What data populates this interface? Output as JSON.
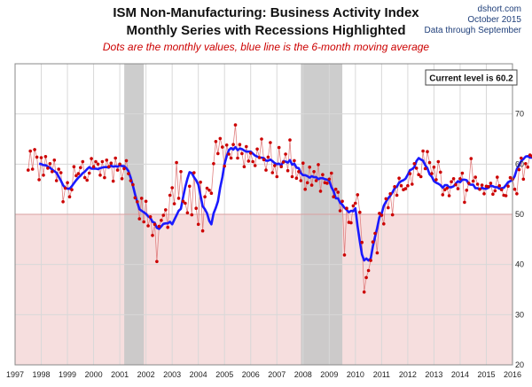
{
  "header": {
    "title_line1": "ISM Non-Manufacturing: Business Activity Index",
    "title_line2": "Monthly Series with Recessions Highlighted",
    "subtitle": "Dots are the monthly values, blue line is the 6-month moving average",
    "source": "dshort.com",
    "date": "October 2015",
    "data_note": "Data through September"
  },
  "annotation": "Current level is 60.2",
  "colors": {
    "dots": "#cc0000",
    "thin_line": "#e08080",
    "moving_average": "#1a1aff",
    "recession": "#c8c8c8",
    "contraction_zone": "#f6dede",
    "grid": "#d8d8d8"
  },
  "chart_data": {
    "type": "line",
    "title": "ISM Non-Manufacturing: Business Activity Index",
    "subtitle": "Monthly Series with Recessions Highlighted",
    "ylim": [
      20,
      80
    ],
    "yticks": [
      20,
      30,
      40,
      50,
      60,
      70
    ],
    "xlim": [
      1997,
      2016
    ],
    "xticks": [
      1997,
      1998,
      1999,
      2000,
      2001,
      2002,
      2003,
      2004,
      2005,
      2006,
      2007,
      2008,
      2009,
      2010,
      2011,
      2012,
      2013,
      2014,
      2015,
      2016
    ],
    "grid": true,
    "y_axis_side": "right",
    "contraction_zone": {
      "from": 20,
      "to": 50
    },
    "recessions": [
      {
        "start": 2001.17,
        "end": 2001.92
      },
      {
        "start": 2007.92,
        "end": 2009.5
      }
    ],
    "series": [
      {
        "name": "Monthly values",
        "style": "dots",
        "start": 1997.5,
        "step_months": 1,
        "values": [
          58.8,
          62.6,
          59.0,
          62.9,
          61.4,
          56.9,
          61.3,
          57.8,
          61.5,
          59.2,
          60.1,
          58.5,
          60.8,
          56.7,
          59.0,
          58.3,
          52.5,
          55.2,
          56.3,
          53.5,
          54.9,
          59.5,
          57.7,
          58.1,
          59.3,
          60.5,
          57.3,
          56.8,
          58.2,
          61.1,
          59.5,
          60.5,
          60.0,
          57.8,
          60.5,
          57.3,
          60.8,
          59.5,
          60.2,
          56.6,
          61.2,
          58.8,
          60.0,
          57.1,
          59.1,
          60.7,
          58.1,
          56.7,
          55.9,
          53.3,
          52.5,
          49.1,
          53.2,
          48.5,
          52.6,
          47.7,
          49.5,
          45.8,
          48.0,
          40.6,
          47.6,
          48.8,
          49.8,
          50.9,
          47.4,
          53.8,
          55.3,
          52.1,
          60.3,
          53.2,
          58.5,
          52.6,
          52.2,
          50.3,
          55.6,
          49.9,
          58.3,
          51.2,
          48.0,
          56.4,
          46.7,
          53.5,
          55.2,
          54.8,
          54.2,
          60.1,
          64.5,
          62.1,
          65.1,
          63.4,
          59.6,
          63.8,
          62.0,
          61.2,
          63.9,
          67.8,
          61.2,
          63.9,
          62.1,
          59.5,
          63.5,
          60.6,
          62.2,
          60.5,
          59.7,
          63.0,
          61.3,
          65.0,
          60.9,
          58.8,
          61.4,
          64.3,
          58.3,
          59.7,
          57.5,
          63.3,
          59.5,
          60.4,
          62.0,
          58.7,
          64.8,
          57.5,
          60.7,
          57.2,
          58.5,
          56.7,
          60.2,
          55.0,
          56.3,
          59.4,
          55.8,
          58.5,
          56.7,
          59.9,
          54.6,
          57.9,
          56.3,
          56.2,
          57.0,
          58.2,
          53.5,
          55.0,
          54.4,
          50.7,
          52.6,
          41.9,
          51.2,
          48.4,
          48.3,
          51.7,
          52.2,
          53.9,
          50.4,
          44.4,
          34.5,
          37.4,
          38.8,
          40.8,
          44.5,
          46.2,
          42.3,
          50.2,
          49.8,
          48.1,
          53.1,
          51.3,
          54.1,
          49.9,
          55.5,
          53.8,
          57.2,
          55.7,
          54.9,
          55.1,
          55.7,
          58.1,
          56.0,
          60.1,
          59.2,
          57.9,
          57.5,
          62.6,
          59.1,
          62.5,
          60.3,
          58.1,
          59.4,
          56.9,
          60.5,
          58.4,
          53.9,
          54.9,
          55.2,
          53.7,
          56.5,
          57.1,
          55.9,
          55.1,
          57.1,
          58.2,
          52.4,
          54.8,
          56.2,
          61.1,
          56.6,
          57.4,
          56.0,
          55.0,
          55.8,
          54.1,
          55.6,
          55.5,
          56.2,
          54.0,
          54.7,
          57.4,
          55.7,
          54.9,
          53.8,
          53.7,
          55.6,
          57.3,
          57.0,
          55.0,
          54.1,
          58.9,
          61.2,
          57.0,
          60.1,
          59.4,
          61.8,
          61.6,
          63.3,
          58.9,
          61.6,
          59.1,
          59.3,
          58.5,
          60.3,
          60.5,
          61.0,
          64.7,
          63.9,
          59.0,
          60.2
        ]
      },
      {
        "name": "6-month moving average",
        "style": "line",
        "start": 1997.5,
        "step_months": 1,
        "values": [
          null,
          null,
          null,
          null,
          null,
          60.1,
          60.0,
          59.8,
          59.8,
          59.5,
          59.3,
          58.9,
          58.6,
          58.3,
          57.5,
          56.7,
          55.8,
          55.3,
          55.1,
          55.1,
          55.6,
          56.2,
          56.8,
          57.3,
          57.7,
          58.2,
          58.5,
          59.0,
          59.4,
          59.1,
          59.1,
          59.1,
          59.0,
          59.2,
          59.3,
          59.4,
          59.4,
          59.3,
          59.7,
          59.5,
          59.6,
          59.5,
          59.8,
          59.6,
          59.6,
          59.2,
          58.6,
          57.3,
          55.7,
          54.0,
          52.4,
          51.0,
          50.7,
          50.4,
          50.1,
          49.6,
          49.3,
          48.5,
          48.3,
          47.3,
          47.1,
          47.6,
          48.1,
          48.2,
          48.2,
          48.5,
          48.0,
          48.9,
          49.8,
          50.7,
          51.1,
          53.4,
          55.4,
          57.1,
          58.4,
          58.2,
          57.4,
          56.8,
          55.9,
          53.8,
          51.6,
          51.0,
          50.2,
          48.7,
          48.0,
          50.2,
          51.3,
          52.6,
          55.3,
          57.4,
          60.0,
          61.6,
          62.8,
          63.2,
          62.9,
          63.4,
          62.8,
          63.1,
          63.0,
          62.7,
          62.5,
          62.5,
          62.5,
          62.1,
          61.7,
          61.5,
          61.3,
          61.3,
          61.2,
          60.7,
          60.7,
          60.9,
          60.6,
          60.2,
          60.0,
          60.1,
          59.7,
          60.6,
          60.5,
          60.3,
          60.8,
          59.9,
          60.1,
          59.3,
          59.2,
          58.2,
          57.8,
          57.8,
          57.6,
          57.3,
          57.6,
          57.4,
          57.4,
          57.0,
          57.2,
          57.2,
          57.0,
          56.9,
          56.7,
          55.4,
          54.6,
          53.2,
          53.2,
          52.3,
          51.9,
          51.3,
          50.9,
          50.4,
          50.7,
          50.6,
          51.2,
          47.6,
          44.6,
          42.0,
          40.8,
          41.2,
          40.8,
          41.2,
          43.6,
          45.5,
          47.3,
          49.4,
          50.1,
          51.7,
          52.5,
          53.2,
          53.7,
          54.4,
          55.2,
          55.5,
          56.3,
          56.6,
          56.8,
          57.1,
          57.9,
          58.8,
          59.0,
          59.4,
          60.6,
          61.2,
          60.9,
          60.7,
          59.8,
          59.2,
          58.0,
          57.5,
          56.6,
          56.3,
          56.1,
          55.8,
          55.3,
          55.8,
          55.8,
          55.4,
          55.4,
          55.6,
          56.1,
          56.6,
          56.4,
          56.9,
          56.9,
          56.8,
          56.0,
          55.9,
          55.9,
          55.2,
          55.2,
          54.9,
          55.3,
          55.1,
          55.1,
          55.3,
          55.7,
          55.6,
          55.4,
          55.4,
          55.1,
          55.2,
          55.3,
          55.8,
          56.4,
          56.6,
          56.8,
          57.6,
          59.0,
          59.8,
          60.6,
          61.0,
          61.5,
          61.6,
          61.3,
          61.3,
          61.1,
          60.4,
          59.8,
          59.7,
          60.0,
          60.6,
          61.1,
          61.6,
          61.7,
          61.5
        ]
      }
    ]
  }
}
